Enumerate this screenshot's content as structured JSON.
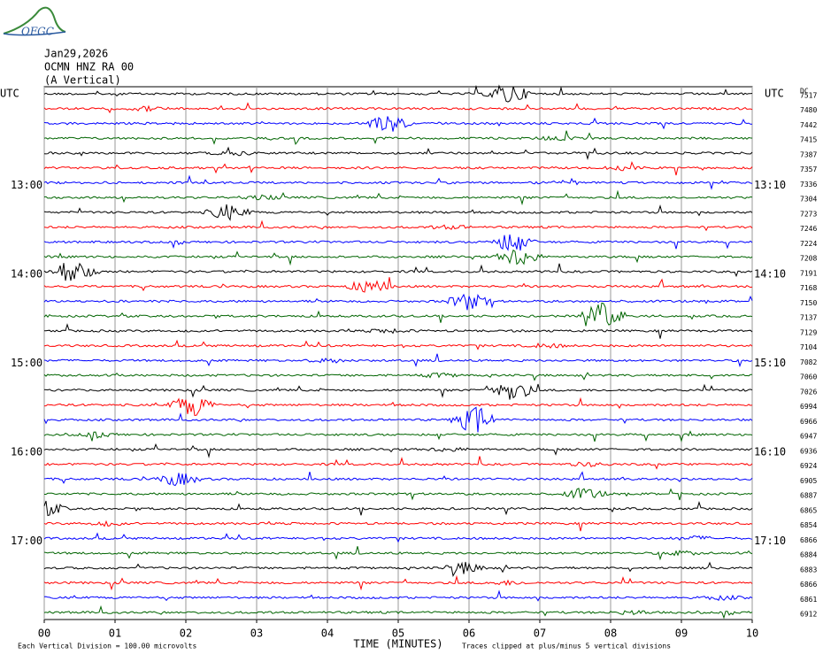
{
  "logo": "OFGC",
  "chart_data": {
    "type": "helicorder",
    "date": "Jan29,2026",
    "station": "OCMN HNZ RA 00",
    "component": "(A Vertical)",
    "left_axis_title": "UTC",
    "right_axis_title": "UTC",
    "right_values_title": "DC",
    "xlabel": "TIME (MINUTES)",
    "scale_note": "Each Vertical Division =  100.00 microvolts",
    "clip_note": "Traces clipped at plus/minus 5 vertical divisions",
    "xlim": [
      0,
      10
    ],
    "xticks": [
      {
        "value": 0,
        "label": "00"
      },
      {
        "value": 1,
        "label": "01"
      },
      {
        "value": 2,
        "label": "02"
      },
      {
        "value": 3,
        "label": "03"
      },
      {
        "value": 4,
        "label": "04"
      },
      {
        "value": 5,
        "label": "05"
      },
      {
        "value": 6,
        "label": "06"
      },
      {
        "value": 7,
        "label": "07"
      },
      {
        "value": 8,
        "label": "08"
      },
      {
        "value": 9,
        "label": "09"
      },
      {
        "value": 10,
        "label": "10"
      }
    ],
    "grid": true,
    "colors": [
      "#000000",
      "#ff0000",
      "#0000ff",
      "#006400"
    ],
    "row_labels": [
      null,
      null,
      null,
      null,
      null,
      null,
      "13:00",
      null,
      null,
      null,
      null,
      null,
      "14:00",
      null,
      null,
      null,
      null,
      null,
      "15:00",
      null,
      null,
      null,
      null,
      null,
      "16:00",
      null,
      null,
      null,
      null,
      null,
      "17:00",
      null,
      null,
      null,
      null,
      null
    ],
    "row_labels_right": [
      null,
      null,
      null,
      null,
      null,
      null,
      "13:10",
      null,
      null,
      null,
      null,
      null,
      "14:10",
      null,
      null,
      null,
      null,
      null,
      "15:10",
      null,
      null,
      null,
      null,
      null,
      "16:10",
      null,
      null,
      null,
      null,
      null,
      "17:10",
      null,
      null,
      null,
      null,
      null
    ],
    "row_values": [
      7517,
      7480,
      7442,
      7415,
      7387,
      7357,
      7336,
      7304,
      7273,
      7246,
      7224,
      7208,
      7191,
      7168,
      7150,
      7137,
      7129,
      7104,
      7082,
      7060,
      7026,
      6994,
      6966,
      6947,
      6936,
      6924,
      6905,
      6887,
      6865,
      6854,
      6866,
      6884,
      6883,
      6866,
      6861,
      6912
    ]
  }
}
